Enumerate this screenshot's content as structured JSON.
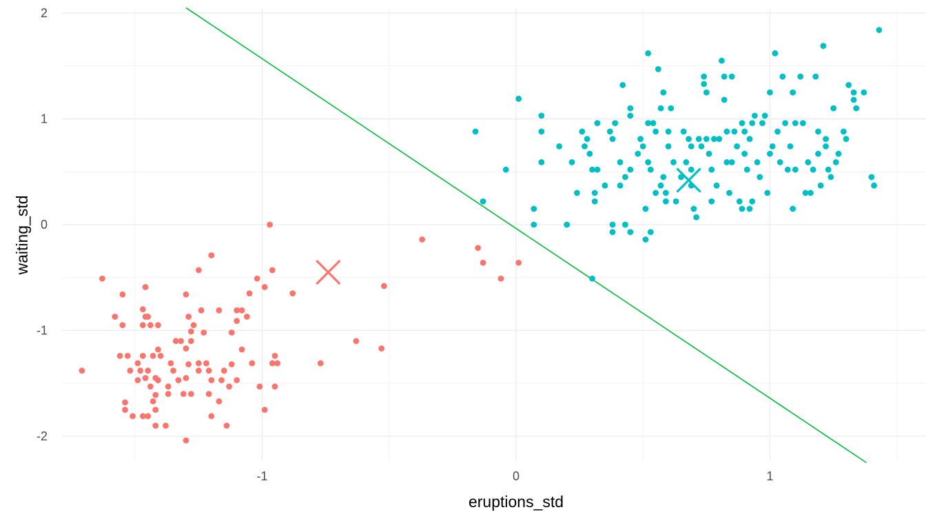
{
  "chart_data": {
    "type": "scatter",
    "title": "",
    "xlabel": "eruptions_std",
    "ylabel": "waiting_std",
    "xlim": [
      -1.9,
      1.52
    ],
    "ylim": [
      -2.25,
      2.05
    ],
    "x_ticks": [
      -1,
      0,
      1
    ],
    "y_ticks": [
      -2,
      -1,
      0,
      1,
      2
    ],
    "x_tick_labels": [
      "-1",
      "0",
      "1"
    ],
    "y_tick_labels": [
      "-2",
      "-1",
      "0",
      "1",
      "2"
    ],
    "grid": true,
    "legend": "none",
    "colors": {
      "cluster_1": "#F8766D",
      "cluster_2": "#00BFC4",
      "boundary": "#00BA38",
      "grid_major": "#ebebeb",
      "grid_minor": "#f4f4f4"
    },
    "series": [
      {
        "color": "#F8766D",
        "points": [
          [
            -1.3,
            -0.66
          ],
          [
            -1.29,
            -0.87
          ],
          [
            -1.28,
            -1.01
          ],
          [
            -1.24,
            -0.81
          ],
          [
            -1.21,
            -1.38
          ],
          [
            -1.17,
            -0.81
          ],
          [
            -1.25,
            -0.43
          ],
          [
            -1.2,
            -0.29
          ],
          [
            -1.1,
            -0.81
          ],
          [
            -1.08,
            -0.81
          ],
          [
            -1.05,
            -0.65
          ],
          [
            -0.97,
            0.0
          ],
          [
            -0.96,
            -0.43
          ],
          [
            -1.02,
            -0.51
          ],
          [
            -0.99,
            -0.59
          ],
          [
            -0.88,
            -0.65
          ],
          [
            -1.06,
            -0.87
          ],
          [
            -1.1,
            -0.91
          ],
          [
            -1.63,
            -0.51
          ],
          [
            -1.58,
            -0.87
          ],
          [
            -1.55,
            -0.66
          ],
          [
            -1.55,
            -0.95
          ],
          [
            -1.56,
            -1.24
          ],
          [
            -1.53,
            -1.24
          ],
          [
            -1.49,
            -1.31
          ],
          [
            -1.48,
            -1.38
          ],
          [
            -1.47,
            -0.8
          ],
          [
            -1.46,
            -0.87
          ],
          [
            -1.45,
            -0.87
          ],
          [
            -1.46,
            -0.59
          ],
          [
            -1.44,
            -0.95
          ],
          [
            -1.43,
            -1.24
          ],
          [
            -1.41,
            -0.95
          ],
          [
            -1.41,
            -1.18
          ],
          [
            -1.4,
            -1.24
          ],
          [
            -1.47,
            -1.24
          ],
          [
            -1.46,
            -1.45
          ],
          [
            -1.44,
            -1.53
          ],
          [
            -1.42,
            -1.45
          ],
          [
            -1.42,
            -1.61
          ],
          [
            -1.41,
            -1.47
          ],
          [
            -1.35,
            -1.38
          ],
          [
            -1.33,
            -1.47
          ],
          [
            -1.32,
            -1.1
          ],
          [
            -1.3,
            -1.17
          ],
          [
            -1.28,
            -1.1
          ],
          [
            -1.29,
            -1.32
          ],
          [
            -1.3,
            -1.45
          ],
          [
            -1.31,
            -1.6
          ],
          [
            -1.28,
            -1.6
          ],
          [
            -1.25,
            -1.38
          ],
          [
            -1.25,
            -1.31
          ],
          [
            -1.22,
            -1.31
          ],
          [
            -1.2,
            -1.47
          ],
          [
            -1.21,
            -1.6
          ],
          [
            -1.2,
            -1.81
          ],
          [
            -1.17,
            -1.67
          ],
          [
            -1.15,
            -1.38
          ],
          [
            -1.13,
            -1.53
          ],
          [
            -1.14,
            -1.9
          ],
          [
            -1.1,
            -1.47
          ],
          [
            -1.08,
            -1.18
          ],
          [
            -1.04,
            -1.31
          ],
          [
            -1.54,
            -1.68
          ],
          [
            -1.54,
            -1.75
          ],
          [
            -1.51,
            -1.81
          ],
          [
            -1.47,
            -1.81
          ],
          [
            -1.45,
            -1.81
          ],
          [
            -1.42,
            -1.75
          ],
          [
            -1.42,
            -1.9
          ],
          [
            -1.38,
            -1.9
          ],
          [
            -1.37,
            -1.6
          ],
          [
            -1.3,
            -2.04
          ],
          [
            -0.99,
            -1.75
          ],
          [
            -1.01,
            -1.53
          ],
          [
            -0.95,
            -1.53
          ],
          [
            -0.96,
            -1.31
          ],
          [
            -0.95,
            -1.24
          ],
          [
            -0.94,
            -1.31
          ],
          [
            -1.71,
            -1.38
          ],
          [
            -1.52,
            -1.38
          ],
          [
            -1.49,
            -1.47
          ],
          [
            -1.47,
            -0.95
          ],
          [
            -1.45,
            -1.38
          ],
          [
            -1.37,
            -1.53
          ],
          [
            -1.36,
            -1.31
          ],
          [
            -1.27,
            -0.95
          ],
          [
            -1.12,
            -1.02
          ],
          [
            -1.12,
            -1.32
          ],
          [
            -1.16,
            -1.47
          ],
          [
            -1.23,
            -1.02
          ],
          [
            -1.34,
            -1.1
          ],
          [
            -1.43,
            -1.67
          ],
          [
            -0.77,
            -1.31
          ],
          [
            -0.63,
            -1.1
          ],
          [
            -0.53,
            -1.17
          ],
          [
            -0.52,
            -0.58
          ],
          [
            -0.37,
            -0.14
          ],
          [
            -0.15,
            -0.22
          ],
          [
            -0.13,
            -0.36
          ],
          [
            -0.06,
            -0.51
          ],
          [
            0.01,
            -0.36
          ]
        ]
      },
      {
        "color": "#00BFC4",
        "points": [
          [
            0.01,
            1.19
          ],
          [
            0.1,
            1.03
          ],
          [
            0.1,
            0.88
          ],
          [
            0.1,
            0.59
          ],
          [
            0.07,
            0.15
          ],
          [
            0.07,
            0.0
          ],
          [
            -0.16,
            0.88
          ],
          [
            -0.13,
            0.22
          ],
          [
            -0.04,
            0.52
          ],
          [
            0.17,
            0.74
          ],
          [
            0.2,
            0.0
          ],
          [
            0.22,
            0.59
          ],
          [
            0.24,
            0.3
          ],
          [
            0.26,
            0.88
          ],
          [
            0.27,
            0.74
          ],
          [
            0.28,
            0.81
          ],
          [
            0.29,
            0.67
          ],
          [
            0.3,
            0.52
          ],
          [
            0.31,
            0.3
          ],
          [
            0.31,
            0.22
          ],
          [
            0.32,
            0.96
          ],
          [
            0.32,
            0.52
          ],
          [
            0.3,
            -0.51
          ],
          [
            0.35,
            0.37
          ],
          [
            0.37,
            0.88
          ],
          [
            0.38,
            0.81
          ],
          [
            0.38,
            0.0
          ],
          [
            0.38,
            -0.07
          ],
          [
            0.39,
            0.96
          ],
          [
            0.41,
            0.59
          ],
          [
            0.41,
            0.37
          ],
          [
            0.42,
            1.32
          ],
          [
            0.43,
            0.45
          ],
          [
            0.43,
            0.0
          ],
          [
            0.45,
            1.03
          ],
          [
            0.45,
            1.1
          ],
          [
            0.45,
            0.52
          ],
          [
            0.45,
            -0.07
          ],
          [
            0.48,
            0.67
          ],
          [
            0.49,
            0.81
          ],
          [
            0.5,
            0.74
          ],
          [
            0.51,
            0.15
          ],
          [
            0.51,
            -0.14
          ],
          [
            0.52,
            0.59
          ],
          [
            0.52,
            0.96
          ],
          [
            0.52,
            1.62
          ],
          [
            0.53,
            -0.07
          ],
          [
            0.53,
            0.52
          ],
          [
            0.54,
            0.96
          ],
          [
            0.55,
            0.88
          ],
          [
            0.55,
            0.3
          ],
          [
            0.56,
            1.47
          ],
          [
            0.57,
            0.37
          ],
          [
            0.57,
            1.1
          ],
          [
            0.58,
            0.45
          ],
          [
            0.58,
            1.25
          ],
          [
            0.59,
            0.3
          ],
          [
            0.59,
            0.22
          ],
          [
            0.6,
            0.88
          ],
          [
            0.6,
            0.74
          ],
          [
            0.61,
            1.1
          ],
          [
            0.62,
            0.59
          ],
          [
            0.63,
            0.22
          ],
          [
            0.65,
            0.45
          ],
          [
            0.66,
            0.88
          ],
          [
            0.67,
            0.59
          ],
          [
            0.68,
            0.81
          ],
          [
            0.69,
            0.74
          ],
          [
            0.69,
            0.52
          ],
          [
            0.69,
            0.37
          ],
          [
            0.7,
            0.15
          ],
          [
            0.71,
            0.07
          ],
          [
            0.72,
            0.81
          ],
          [
            0.73,
            0.74
          ],
          [
            0.74,
            1.4
          ],
          [
            0.74,
            1.33
          ],
          [
            0.75,
            1.25
          ],
          [
            0.75,
            0.81
          ],
          [
            0.76,
            0.67
          ],
          [
            0.77,
            0.52
          ],
          [
            0.77,
            0.22
          ],
          [
            0.78,
            0.81
          ],
          [
            0.79,
            0.37
          ],
          [
            0.8,
            0.81
          ],
          [
            0.81,
            1.55
          ],
          [
            0.82,
            1.4
          ],
          [
            0.82,
            1.18
          ],
          [
            0.83,
            0.88
          ],
          [
            0.83,
            0.59
          ],
          [
            0.84,
            0.3
          ],
          [
            0.85,
            1.4
          ],
          [
            0.85,
            0.59
          ],
          [
            0.86,
            0.88
          ],
          [
            0.87,
            0.74
          ],
          [
            0.88,
            0.22
          ],
          [
            0.89,
            0.96
          ],
          [
            0.89,
            0.15
          ],
          [
            0.9,
            0.88
          ],
          [
            0.9,
            0.67
          ],
          [
            0.91,
            0.52
          ],
          [
            0.92,
            0.81
          ],
          [
            0.92,
            0.15
          ],
          [
            0.93,
            0.22
          ],
          [
            0.93,
            0.96
          ],
          [
            0.94,
            1.03
          ],
          [
            0.95,
            0.59
          ],
          [
            0.96,
            0.45
          ],
          [
            0.97,
            0.96
          ],
          [
            0.98,
            1.03
          ],
          [
            0.99,
            0.3
          ],
          [
            1.0,
            1.25
          ],
          [
            1.0,
            0.67
          ],
          [
            1.01,
            0.74
          ],
          [
            1.02,
            1.62
          ],
          [
            1.03,
            0.88
          ],
          [
            1.04,
            0.59
          ],
          [
            1.05,
            1.4
          ],
          [
            1.06,
            0.96
          ],
          [
            1.07,
            0.52
          ],
          [
            1.08,
            0.74
          ],
          [
            1.09,
            1.25
          ],
          [
            1.09,
            0.15
          ],
          [
            1.1,
            0.96
          ],
          [
            1.1,
            0.52
          ],
          [
            1.12,
            1.4
          ],
          [
            1.13,
            0.96
          ],
          [
            1.14,
            0.3
          ],
          [
            1.15,
            0.59
          ],
          [
            1.16,
            0.3
          ],
          [
            1.17,
            0.52
          ],
          [
            1.18,
            1.4
          ],
          [
            1.19,
            0.88
          ],
          [
            1.19,
            0.67
          ],
          [
            1.2,
            0.37
          ],
          [
            1.21,
            1.69
          ],
          [
            1.22,
            0.81
          ],
          [
            1.22,
            0.74
          ],
          [
            1.23,
            0.52
          ],
          [
            1.24,
            0.45
          ],
          [
            1.25,
            1.1
          ],
          [
            1.26,
            0.59
          ],
          [
            1.27,
            0.67
          ],
          [
            1.29,
            0.88
          ],
          [
            1.3,
            0.81
          ],
          [
            1.31,
            1.32
          ],
          [
            1.33,
            1.25
          ],
          [
            1.33,
            1.18
          ],
          [
            1.34,
            1.1
          ],
          [
            1.37,
            1.25
          ],
          [
            1.4,
            0.45
          ],
          [
            1.41,
            0.37
          ],
          [
            1.43,
            1.84
          ]
        ]
      }
    ],
    "centroids": [
      {
        "x": -0.74,
        "y": -0.45,
        "color": "#F8766D"
      },
      {
        "x": 0.68,
        "y": 0.42,
        "color": "#00BFC4"
      }
    ],
    "boundary_line": {
      "color": "#00BA38",
      "x1": -1.3,
      "y1": 2.05,
      "x2": 1.38,
      "y2": -2.25
    }
  }
}
